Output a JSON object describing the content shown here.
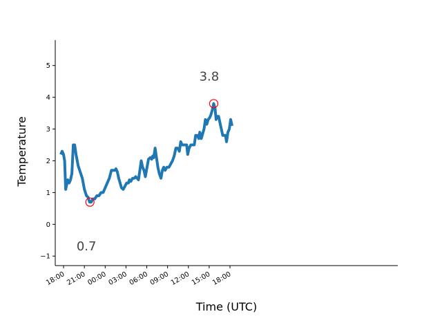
{
  "chart_data": {
    "type": "line",
    "xlabel": "Time (UTC)",
    "ylabel": "Temperature",
    "xlim_hours": [
      -1.2,
      48.2
    ],
    "ylim": [
      -1.3,
      5.8
    ],
    "x_ticks": [
      {
        "h": 0,
        "label": "18:00"
      },
      {
        "h": 3,
        "label": "21:00"
      },
      {
        "h": 6,
        "label": "00:00"
      },
      {
        "h": 9,
        "label": "03:00"
      },
      {
        "h": 12,
        "label": "06:00"
      },
      {
        "h": 15,
        "label": "09:00"
      },
      {
        "h": 18,
        "label": "12:00"
      },
      {
        "h": 21,
        "label": "15:00"
      },
      {
        "h": 24,
        "label": "18:00"
      }
    ],
    "y_ticks": [
      {
        "v": -1,
        "label": "−1"
      },
      {
        "v": 0,
        "label": "0"
      },
      {
        "v": 1,
        "label": "1"
      },
      {
        "v": 2,
        "label": "2"
      },
      {
        "v": 3,
        "label": "3"
      },
      {
        "v": 4,
        "label": "4"
      },
      {
        "v": 5,
        "label": "5"
      }
    ],
    "series": [
      {
        "color": "#1f77b4",
        "points": [
          [
            -0.4,
            2.2
          ],
          [
            -0.2,
            2.3
          ],
          [
            0.0,
            2.2
          ],
          [
            0.15,
            2.0
          ],
          [
            0.3,
            1.1
          ],
          [
            0.4,
            1.2
          ],
          [
            0.6,
            1.4
          ],
          [
            0.8,
            1.3
          ],
          [
            1.0,
            1.4
          ],
          [
            1.2,
            1.6
          ],
          [
            1.4,
            2.5
          ],
          [
            1.6,
            2.5
          ],
          [
            1.8,
            2.2
          ],
          [
            2.1,
            1.85
          ],
          [
            2.4,
            1.65
          ],
          [
            2.7,
            1.45
          ],
          [
            3.0,
            1.1
          ],
          [
            3.3,
            0.9
          ],
          [
            3.55,
            0.85
          ],
          [
            3.75,
            0.7
          ],
          [
            4.0,
            0.7
          ],
          [
            4.2,
            0.8
          ],
          [
            4.5,
            0.8
          ],
          [
            4.8,
            0.9
          ],
          [
            5.1,
            0.9
          ],
          [
            5.4,
            1.0
          ],
          [
            5.7,
            1.0
          ],
          [
            6.0,
            1.15
          ],
          [
            6.3,
            1.3
          ],
          [
            6.6,
            1.45
          ],
          [
            6.9,
            1.7
          ],
          [
            7.2,
            1.7
          ],
          [
            7.4,
            1.7
          ],
          [
            7.55,
            1.75
          ],
          [
            7.75,
            1.65
          ],
          [
            7.95,
            1.45
          ],
          [
            8.15,
            1.3
          ],
          [
            8.35,
            1.15
          ],
          [
            8.6,
            1.1
          ],
          [
            8.85,
            1.2
          ],
          [
            9.1,
            1.3
          ],
          [
            9.35,
            1.3
          ],
          [
            9.5,
            1.4
          ],
          [
            9.7,
            1.35
          ],
          [
            9.95,
            1.45
          ],
          [
            10.2,
            1.45
          ],
          [
            10.4,
            1.5
          ],
          [
            10.6,
            1.45
          ],
          [
            10.8,
            1.4
          ],
          [
            11.0,
            1.7
          ],
          [
            11.2,
            2.0
          ],
          [
            11.4,
            1.8
          ],
          [
            11.6,
            1.7
          ],
          [
            11.8,
            1.5
          ],
          [
            12.0,
            1.75
          ],
          [
            12.25,
            2.05
          ],
          [
            12.5,
            2.1
          ],
          [
            12.7,
            2.05
          ],
          [
            12.85,
            2.15
          ],
          [
            13.0,
            2.1
          ],
          [
            13.2,
            2.4
          ],
          [
            13.4,
            2.1
          ],
          [
            13.6,
            1.8
          ],
          [
            13.8,
            1.6
          ],
          [
            14.05,
            1.45
          ],
          [
            14.25,
            1.7
          ],
          [
            14.45,
            1.8
          ],
          [
            14.65,
            1.7
          ],
          [
            14.9,
            1.8
          ],
          [
            15.2,
            1.8
          ],
          [
            15.45,
            1.9
          ],
          [
            15.7,
            2.0
          ],
          [
            15.95,
            2.15
          ],
          [
            16.2,
            2.4
          ],
          [
            16.45,
            2.4
          ],
          [
            16.7,
            2.3
          ],
          [
            16.9,
            2.6
          ],
          [
            17.1,
            2.5
          ],
          [
            17.3,
            2.5
          ],
          [
            17.55,
            2.5
          ],
          [
            17.75,
            2.5
          ],
          [
            17.9,
            2.2
          ],
          [
            18.1,
            2.4
          ],
          [
            18.35,
            2.5
          ],
          [
            18.6,
            2.5
          ],
          [
            18.85,
            2.5
          ],
          [
            19.05,
            2.8
          ],
          [
            19.3,
            2.8
          ],
          [
            19.5,
            2.7
          ],
          [
            19.65,
            2.9
          ],
          [
            19.85,
            2.7
          ],
          [
            20.05,
            2.85
          ],
          [
            20.25,
            3.0
          ],
          [
            20.45,
            3.3
          ],
          [
            20.65,
            3.15
          ],
          [
            20.85,
            3.3
          ],
          [
            21.05,
            3.35
          ],
          [
            21.25,
            3.45
          ],
          [
            21.45,
            3.6
          ],
          [
            21.65,
            3.8
          ],
          [
            21.85,
            3.65
          ],
          [
            22.0,
            3.3
          ],
          [
            22.15,
            3.4
          ],
          [
            22.35,
            3.4
          ],
          [
            22.55,
            3.2
          ],
          [
            22.75,
            3.0
          ],
          [
            22.95,
            2.8
          ],
          [
            23.15,
            2.8
          ],
          [
            23.35,
            2.8
          ],
          [
            23.5,
            2.6
          ],
          [
            23.7,
            2.9
          ],
          [
            23.9,
            3.0
          ],
          [
            24.1,
            3.3
          ],
          [
            24.3,
            3.1
          ]
        ]
      }
    ],
    "annotations": [
      {
        "h": 3.8,
        "v": 0.7,
        "text": "0.7",
        "text_h": 3.3,
        "text_v": -0.82
      },
      {
        "h": 21.65,
        "v": 3.8,
        "text": "3.8",
        "text_h": 21.0,
        "text_v": 4.53
      }
    ],
    "marker_color": "#ff0000",
    "spines": [
      "left",
      "bottom"
    ]
  }
}
